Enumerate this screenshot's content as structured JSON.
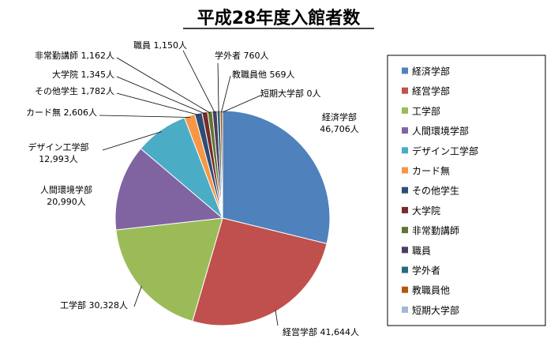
{
  "chart_data": {
    "type": "pie",
    "title": "平成28年度入館者数",
    "unit": "人",
    "legend_position": "right",
    "slices": [
      {
        "name": "経済学部",
        "value": 46706,
        "value_text": "46,706",
        "color": "#4F81BD"
      },
      {
        "name": "経営学部",
        "value": 41644,
        "value_text": "41,644",
        "color": "#C0504D"
      },
      {
        "name": "工学部",
        "value": 30328,
        "value_text": "30,328",
        "color": "#9BBB59"
      },
      {
        "name": "人間環境学部",
        "value": 20990,
        "value_text": "20,990",
        "color": "#8064A2"
      },
      {
        "name": "デザイン工学部",
        "value": 12993,
        "value_text": "12,993",
        "color": "#4BACC6"
      },
      {
        "name": "カード無",
        "value": 2606,
        "value_text": "2,606",
        "color": "#F79646"
      },
      {
        "name": "その他学生",
        "value": 1782,
        "value_text": "1,782",
        "color": "#2C4D75"
      },
      {
        "name": "大学院",
        "value": 1345,
        "value_text": "1,345",
        "color": "#772C2A"
      },
      {
        "name": "非常勤講師",
        "value": 1162,
        "value_text": "1,162",
        "color": "#5F7530"
      },
      {
        "name": "職員",
        "value": 1150,
        "value_text": "1,150",
        "color": "#4D3B62"
      },
      {
        "name": "学外者",
        "value": 760,
        "value_text": "760",
        "color": "#276A7C"
      },
      {
        "name": "教職員他",
        "value": 569,
        "value_text": "569",
        "color": "#B65708"
      },
      {
        "name": "短期大学部",
        "value": 0,
        "value_text": "0",
        "color": "#A5B7D7"
      }
    ]
  }
}
